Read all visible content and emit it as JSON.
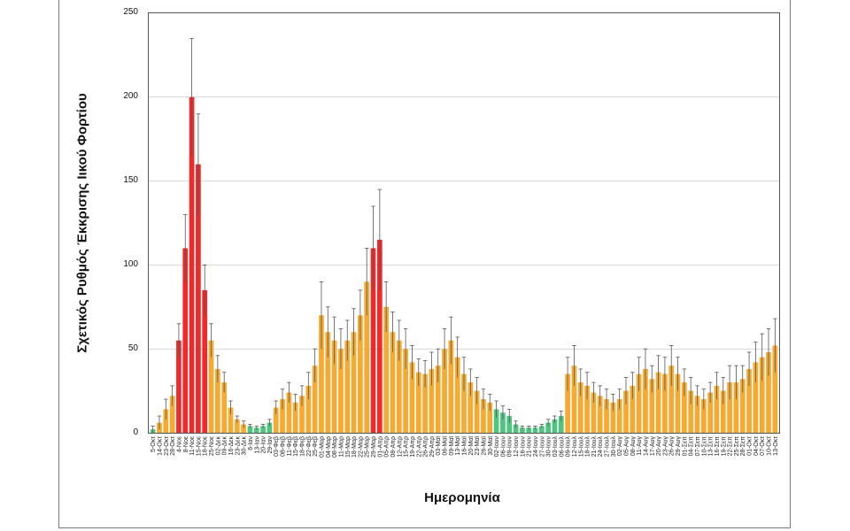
{
  "chart_data": {
    "type": "bar",
    "title": "",
    "xlabel": "Ημερομηνία",
    "ylabel": "Σχετικός Ρυθμός Έκκρισης Ιικού Φορτίου",
    "ylim": [
      0,
      250
    ],
    "yticks": [
      0,
      50,
      100,
      150,
      200,
      250
    ],
    "grid": true,
    "has_error_bars": true,
    "colors": {
      "red": "#ee2a2a",
      "orange": "#f7a930",
      "green": "#4ec67f",
      "error": "#555555",
      "grid": "#d9d9d9"
    },
    "categories": [
      "5-Οκτ",
      "14-Οκτ",
      "23-Οκτ",
      "28-Οκτ",
      "4-Νοε",
      "8-Νοε",
      "11-Νοε",
      "15-Νοε",
      "18-Νοε",
      "25-Νοε",
      "02-Δεκ",
      "09-Δεκ",
      "16-Δεκ",
      "23-Δεκ",
      "30-Δεκ",
      "6-Ιαν",
      "13-Ιαν",
      "20-Ιαν",
      "29-Ιαν",
      "03-Φεβ",
      "08-Φεβ",
      "11-Φεβ",
      "15-Φεβ",
      "18-Φεβ",
      "22-Φεβ",
      "25-Φεβ",
      "01-Μαρ",
      "04-Μαρ",
      "08-Μαρ",
      "11-Μαρ",
      "15-Μαρ",
      "18-Μαρ",
      "22-Μαρ",
      "25-Μαρ",
      "29-Μαρ",
      "01-Απρ",
      "05-Απρ",
      "08-Απρ",
      "12-Απρ",
      "15-Απρ",
      "19-Απρ",
      "22-Απρ",
      "26-Απρ",
      "29-Απρ",
      "03-Μαϊ",
      "06-Μαϊ",
      "09-Μαϊ",
      "13-Μαϊ",
      "16-Μαϊ",
      "20-Μαϊ",
      "23-Μαϊ",
      "26-Μαϊ",
      "30-Μαϊ",
      "02-Ιουν",
      "06-Ιουν",
      "09-Ιουν",
      "12-Ιουν",
      "16-Ιουν",
      "21-Ιουν",
      "24-Ιουν",
      "27-Ιουν",
      "30-Ιουν",
      "03-Ιουλ",
      "06-Ιουλ",
      "09-Ιουλ",
      "12-Ιουλ",
      "15-Ιουλ",
      "18-Ιουλ",
      "21-Ιουλ",
      "24-Ιουλ",
      "27-Ιουλ",
      "30-Ιουλ",
      "02-Αυγ",
      "05-Αυγ",
      "08-Αυγ",
      "11-Αυγ",
      "14-Αυγ",
      "17-Αυγ",
      "20-Αυγ",
      "23-Αυγ",
      "26-Αυγ",
      "29-Αυγ",
      "01-Σεπ",
      "04-Σεπ",
      "07-Σεπ",
      "10-Σεπ",
      "13-Σεπ",
      "16-Σεπ",
      "19-Σεπ",
      "22-Σεπ",
      "25-Σεπ",
      "28-Σεπ",
      "01-Οκτ",
      "04-Οκτ",
      "07-Οκτ",
      "10-Οκτ",
      "13-Οκτ"
    ],
    "values": [
      2,
      6,
      14,
      22,
      55,
      110,
      200,
      160,
      85,
      55,
      38,
      30,
      15,
      8,
      5,
      4,
      3,
      4,
      6,
      15,
      20,
      24,
      18,
      22,
      28,
      40,
      70,
      60,
      55,
      50,
      55,
      60,
      70,
      90,
      110,
      115,
      75,
      60,
      55,
      50,
      42,
      36,
      35,
      38,
      40,
      50,
      55,
      45,
      35,
      30,
      25,
      20,
      18,
      14,
      12,
      10,
      5,
      3,
      3,
      3,
      4,
      6,
      8,
      10,
      35,
      40,
      30,
      28,
      24,
      22,
      20,
      18,
      20,
      25,
      28,
      35,
      38,
      32,
      36,
      35,
      40,
      35,
      30,
      25,
      22,
      20,
      24,
      28,
      25,
      30,
      30,
      32,
      38,
      42,
      45,
      48,
      52
    ],
    "errors": [
      2,
      4,
      6,
      6,
      10,
      20,
      35,
      30,
      15,
      10,
      8,
      6,
      4,
      2,
      2,
      1,
      1,
      1,
      2,
      4,
      6,
      6,
      5,
      6,
      8,
      10,
      20,
      15,
      14,
      12,
      12,
      14,
      15,
      20,
      25,
      30,
      15,
      12,
      12,
      12,
      10,
      8,
      8,
      10,
      10,
      12,
      14,
      12,
      10,
      8,
      8,
      6,
      5,
      5,
      4,
      4,
      2,
      1,
      1,
      1,
      1,
      2,
      2,
      3,
      10,
      12,
      8,
      8,
      6,
      6,
      6,
      5,
      6,
      8,
      8,
      10,
      12,
      8,
      10,
      10,
      12,
      10,
      8,
      8,
      6,
      6,
      6,
      8,
      8,
      10,
      10,
      8,
      10,
      12,
      14,
      14,
      16
    ],
    "colors_by_point": [
      "g",
      "o",
      "o",
      "o",
      "r",
      "r",
      "r",
      "r",
      "r",
      "o",
      "o",
      "o",
      "o",
      "o",
      "o",
      "g",
      "g",
      "g",
      "g",
      "o",
      "o",
      "o",
      "o",
      "o",
      "o",
      "o",
      "o",
      "o",
      "o",
      "o",
      "o",
      "o",
      "o",
      "o",
      "r",
      "r",
      "o",
      "o",
      "o",
      "o",
      "o",
      "o",
      "o",
      "o",
      "o",
      "o",
      "o",
      "o",
      "o",
      "o",
      "o",
      "o",
      "o",
      "g",
      "g",
      "g",
      "g",
      "g",
      "g",
      "g",
      "g",
      "g",
      "g",
      "g",
      "o",
      "o",
      "o",
      "o",
      "o",
      "o",
      "o",
      "o",
      "o",
      "o",
      "o",
      "o",
      "o",
      "o",
      "o",
      "o",
      "o",
      "o",
      "o",
      "o",
      "o",
      "o",
      "o",
      "o",
      "o",
      "o",
      "o",
      "o",
      "o",
      "o",
      "o",
      "o",
      "o"
    ]
  }
}
